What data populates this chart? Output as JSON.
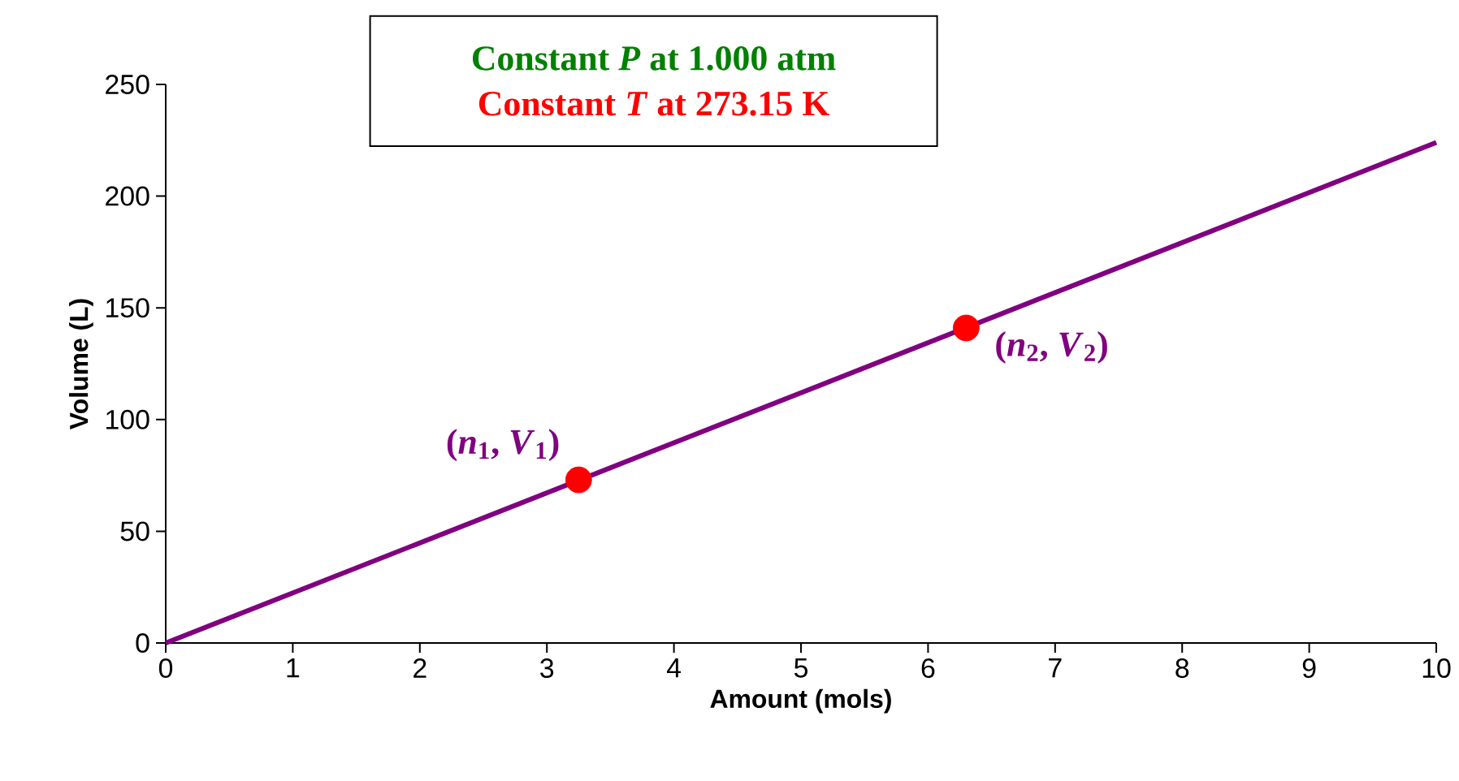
{
  "chart_data": {
    "type": "line",
    "xlabel": "Amount (mols)",
    "ylabel": "Volume (L)",
    "xlim": [
      0,
      10
    ],
    "ylim": [
      0,
      250
    ],
    "xticks": [
      0,
      1,
      2,
      3,
      4,
      5,
      6,
      7,
      8,
      9,
      10
    ],
    "yticks": [
      0,
      50,
      100,
      150,
      200,
      250
    ],
    "grid": false,
    "series": [
      {
        "type": "line",
        "color": "#800080",
        "x": [
          0,
          10
        ],
        "values": [
          0,
          224
        ],
        "marker": "none"
      },
      {
        "type": "scatter",
        "color": "#ff0000",
        "x": [
          3.25,
          6.3
        ],
        "values": [
          73,
          141
        ],
        "marker": "circle"
      }
    ],
    "annotations": [
      {
        "text": "(*n*$_{1}$, *V*$_{1}$)",
        "x": 3.25,
        "y": 73
      },
      {
        "text": "(*n*$_{2}$, *V*$_{2}$)",
        "x": 6.3,
        "y": 141
      },
      "Constant *P* at 1.000 atm",
      "Constant *T* at 273.15 K"
    ]
  }
}
